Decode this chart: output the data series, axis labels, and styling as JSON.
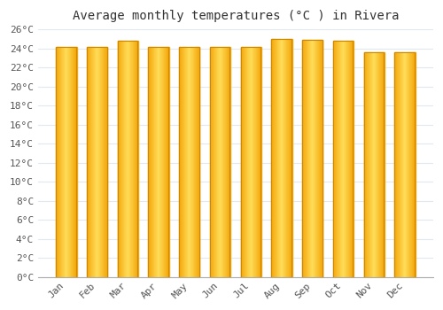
{
  "title": "Average monthly temperatures (°C ) in Rivera",
  "months": [
    "Jan",
    "Feb",
    "Mar",
    "Apr",
    "May",
    "Jun",
    "Jul",
    "Aug",
    "Sep",
    "Oct",
    "Nov",
    "Dec"
  ],
  "values": [
    24.2,
    24.2,
    24.8,
    24.2,
    24.2,
    24.2,
    24.2,
    25.0,
    24.9,
    24.8,
    23.6,
    23.6
  ],
  "bar_color_center": "#FFD060",
  "bar_color_edge": "#F5A800",
  "bar_border_color": "#CC8800",
  "ylim": [
    0,
    26
  ],
  "ytick_step": 2,
  "background_color": "#FFFFFF",
  "grid_color": "#E0E8F0",
  "title_fontsize": 10,
  "tick_fontsize": 8,
  "font_family": "monospace",
  "bar_width": 0.65
}
